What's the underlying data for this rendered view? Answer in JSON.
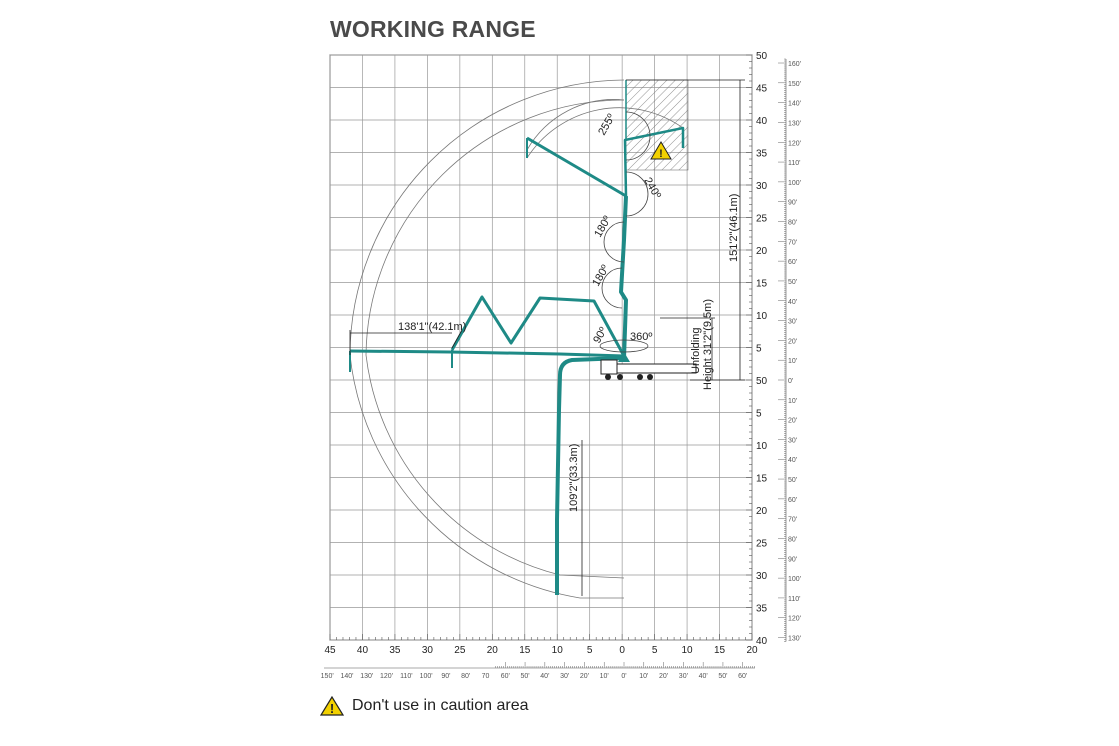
{
  "title": "WORKING RANGE",
  "colors": {
    "boom": "#1e8a86",
    "grid": "#8a8a8a",
    "text": "#333333",
    "warning": "#f2d100"
  },
  "axes": {
    "bottom_m_labels": [
      "45",
      "40",
      "35",
      "30",
      "25",
      "20",
      "15",
      "10",
      "5",
      "0",
      "5",
      "10",
      "15",
      "20"
    ],
    "bottom_ft_labels": [
      "150'",
      "140'",
      "130'",
      "120'",
      "110'",
      "100'",
      "90'",
      "80'",
      "70",
      "60'",
      "50'",
      "40'",
      "30'",
      "20'",
      "10'",
      "0'",
      "10'",
      "20'",
      "30'",
      "40'",
      "50'",
      "60'"
    ],
    "right_m_labels": [
      "50",
      "45",
      "40",
      "35",
      "30",
      "25",
      "20",
      "15",
      "10",
      "5",
      "50",
      "5",
      "10",
      "15",
      "20",
      "25",
      "30",
      "35",
      "40"
    ],
    "right_ft_labels": [
      "160'",
      "150'",
      "140'",
      "130'",
      "120'",
      "110'",
      "100'",
      "90'",
      "80'",
      "70'",
      "60'",
      "50'",
      "40'",
      "30'",
      "20'",
      "10'",
      "0'",
      "10'",
      "20'",
      "30'",
      "40'",
      "50'",
      "60'",
      "70'",
      "80'",
      "90'",
      "100'",
      "110'",
      "120'",
      "130'"
    ]
  },
  "dimensions": {
    "max_height": "151'2\"(46.1m)",
    "max_reach": "138'1\"(42.1m)",
    "max_depth": "109'2\"(33.3m)",
    "unfolding_line1": "Unfolding",
    "unfolding_line2": "Height 31'2\"(9.5m)"
  },
  "angles": {
    "a1": "255º",
    "a2": "240º",
    "a3": "180º",
    "a4": "180º",
    "a5": "90º",
    "a6": "360º"
  },
  "footer": {
    "icon": "warning-triangle-icon",
    "text": "Don't use in caution area"
  }
}
